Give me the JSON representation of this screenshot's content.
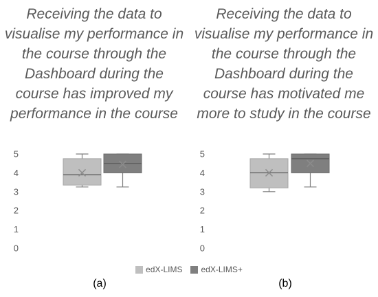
{
  "colors": {
    "series1": "#BFBFBF",
    "series2": "#7F7F7F",
    "whisker": "#7F7F7F",
    "median": "#595959",
    "mean_marker": "#8C8C8C",
    "axis_text": "#595959",
    "grid": "#D9D9D9"
  },
  "legend": {
    "series1": "edX-LIMS",
    "series2": "edX-LIMS+"
  },
  "chart_data": [
    {
      "type": "boxplot",
      "title": "Receiving the data to visualise my performance in the course through the Dashboard during the course has improved my performance in the course",
      "caption": "(a)",
      "ylim": [
        0,
        5
      ],
      "yticks": [
        "0",
        "1",
        "2",
        "3",
        "4",
        "5"
      ],
      "grid": false,
      "legend_position": "bottom",
      "series": [
        {
          "name": "edX-LIMS",
          "min": 3.25,
          "q1": 3.35,
          "median": 3.9,
          "q3": 4.75,
          "max": 5.0,
          "mean": 4.0
        },
        {
          "name": "edX-LIMS+",
          "min": 3.25,
          "q1": 4.0,
          "median": 4.5,
          "q3": 5.0,
          "max": 5.0,
          "mean": 4.45
        }
      ]
    },
    {
      "type": "boxplot",
      "title": "Receiving the data to visualise my performance in the course through the Dashboard during the course has motivated me more to study in the course",
      "caption": "(b)",
      "ylim": [
        0,
        5
      ],
      "yticks": [
        "0",
        "1",
        "2",
        "3",
        "4",
        "5"
      ],
      "grid": false,
      "legend_position": "bottom",
      "series": [
        {
          "name": "edX-LIMS",
          "min": 3.0,
          "q1": 3.2,
          "median": 4.0,
          "q3": 4.75,
          "max": 5.0,
          "mean": 4.0
        },
        {
          "name": "edX-LIMS+",
          "min": 3.25,
          "q1": 4.0,
          "median": 4.75,
          "q3": 5.0,
          "max": 5.0,
          "mean": 4.5
        }
      ]
    }
  ]
}
